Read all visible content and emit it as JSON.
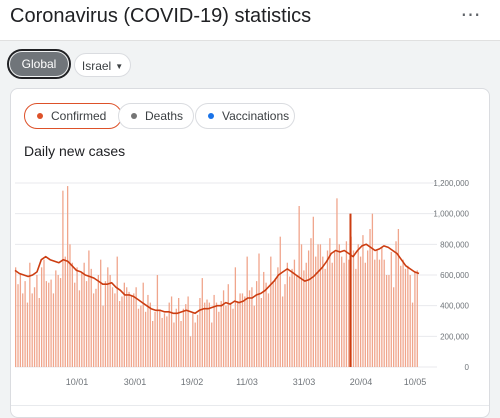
{
  "header": {
    "title": "Coronavirus (COVID-19) statistics",
    "more_icon": "more-horiz-icon"
  },
  "location_filter": {
    "global_label": "Global",
    "country_label": "Israel",
    "country_caret": "▼"
  },
  "metric_chips": [
    {
      "label": "Confirmed",
      "color": "#dd5129",
      "selected": true
    },
    {
      "label": "Deaths",
      "color": "#757575",
      "selected": false
    },
    {
      "label": "Vaccinations",
      "color": "#1a73e8",
      "selected": false
    }
  ],
  "chart_title": "Daily new cases",
  "chart_data": {
    "type": "bar",
    "title": "Daily new cases",
    "xlabel": "",
    "ylabel": "",
    "ylim": [
      0,
      1200000
    ],
    "y_ticks": [
      "0",
      "200,000",
      "400,000",
      "600,000",
      "800,000",
      "1,000,000",
      "1,200,000"
    ],
    "x_ticks": [
      "10/01",
      "30/01",
      "19/02",
      "11/03",
      "31/03",
      "20/04",
      "10/05"
    ],
    "bar_color": "#f0a58c",
    "line_color": "#cc3d11",
    "marker_color": "#cc3d11",
    "grid": true,
    "series": [
      {
        "values": [
          650000,
          540000,
          610000,
          480000,
          560000,
          420000,
          680000,
          480000,
          520000,
          600000,
          450000,
          650000,
          700000,
          560000,
          550000,
          570000,
          480000,
          630000,
          600000,
          580000,
          1150000,
          720000,
          1180000,
          800000,
          680000,
          550000,
          650000,
          500000,
          620000,
          680000,
          560000,
          760000,
          640000,
          480000,
          510000,
          600000,
          700000,
          400000,
          560000,
          650000,
          600000,
          520000,
          480000,
          720000,
          430000,
          460000,
          550000,
          520000,
          490000,
          470000,
          480000,
          520000,
          380000,
          400000,
          550000,
          360000,
          470000,
          420000,
          300000,
          360000,
          600000,
          370000,
          320000,
          350000,
          330000,
          420000,
          460000,
          290000,
          380000,
          450000,
          300000,
          380000,
          410000,
          460000,
          200000,
          350000,
          290000,
          340000,
          450000,
          580000,
          420000,
          440000,
          420000,
          290000,
          470000,
          420000,
          360000,
          430000,
          500000,
          400000,
          540000,
          420000,
          380000,
          650000,
          430000,
          480000,
          480000,
          460000,
          720000,
          500000,
          520000,
          400000,
          560000,
          740000,
          450000,
          620000,
          550000,
          480000,
          720000,
          560000,
          580000,
          650000,
          850000,
          460000,
          540000,
          680000,
          590000,
          640000,
          700000,
          600000,
          1050000,
          800000,
          630000,
          680000,
          760000,
          840000,
          980000,
          720000,
          800000,
          800000,
          720000,
          640000,
          760000,
          840000,
          680000,
          760000,
          1100000,
          800000,
          720000,
          680000,
          820000,
          700000,
          850000,
          760000,
          640000,
          800000,
          720000,
          860000,
          680000,
          760000,
          900000,
          1000000,
          700000,
          760000,
          700000,
          780000,
          700000,
          600000,
          600000,
          750000,
          520000,
          820000,
          900000,
          660000,
          700000,
          640000,
          660000,
          600000,
          420000,
          620000,
          630000
        ]
      }
    ],
    "smoothed_line": [
      630000,
      610000,
      600000,
      590000,
      600000,
      620000,
      700000,
      720000,
      700000,
      690000,
      680000,
      700000,
      690000,
      660000,
      630000,
      620000,
      600000,
      590000,
      580000,
      560000,
      540000,
      540000,
      550000,
      520000,
      500000,
      470000,
      470000,
      460000,
      440000,
      420000,
      400000,
      380000,
      370000,
      370000,
      360000,
      360000,
      350000,
      350000,
      360000,
      370000,
      360000,
      350000,
      370000,
      380000,
      380000,
      390000,
      400000,
      400000,
      420000,
      410000,
      430000,
      420000,
      430000,
      450000,
      450000,
      470000,
      480000,
      500000,
      530000,
      560000,
      600000,
      620000,
      640000,
      620000,
      600000,
      580000,
      560000,
      570000,
      590000,
      620000,
      650000,
      690000,
      740000,
      760000,
      750000,
      760000,
      740000,
      720000,
      760000,
      790000,
      800000,
      780000,
      760000,
      770000,
      790000,
      780000,
      760000,
      740000,
      700000,
      660000,
      640000,
      620000,
      610000
    ],
    "marker": {
      "value": 1000000
    }
  }
}
